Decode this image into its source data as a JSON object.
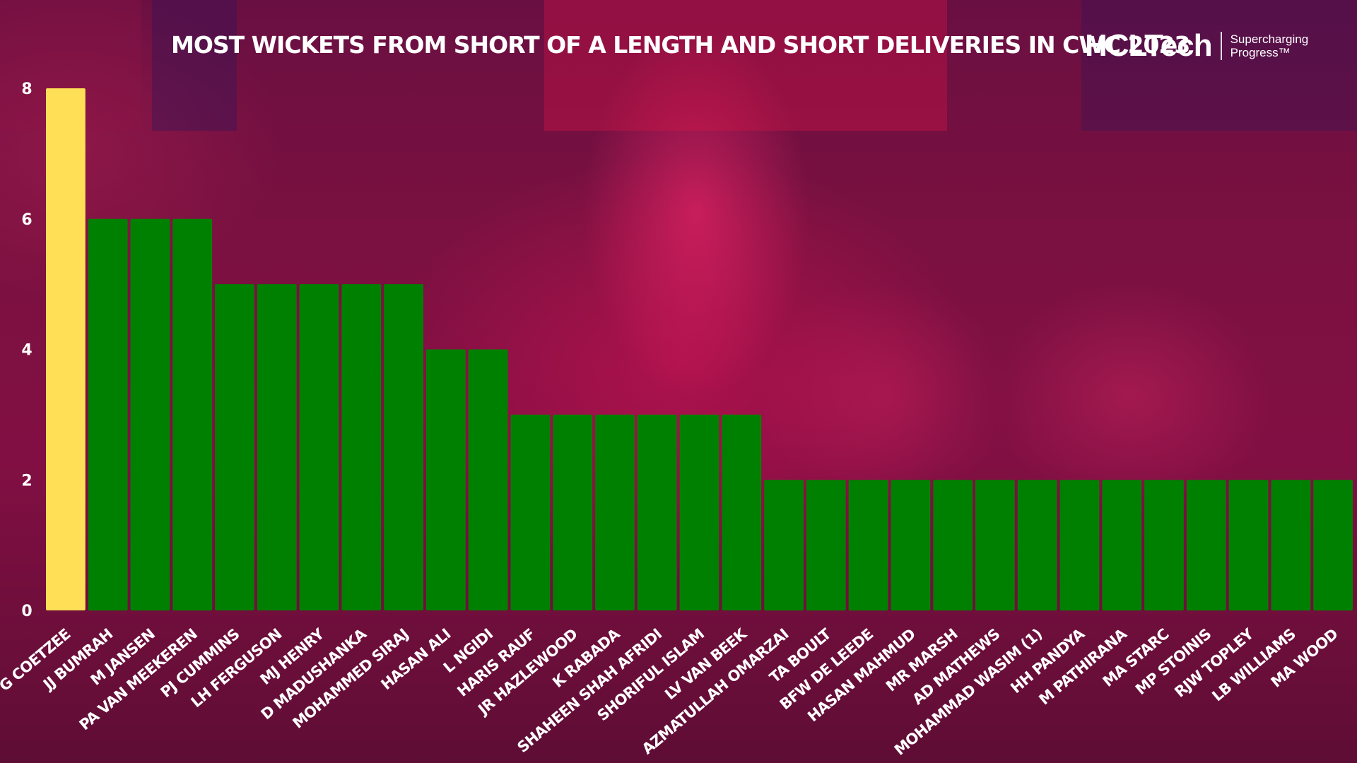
{
  "branding": {
    "name": "HCLTech",
    "tagline_line1": "Supercharging",
    "tagline_line2": "Progress™"
  },
  "colors": {
    "highlight_bar": "#FFDF56",
    "bar": "#008000",
    "text": "#FFFFFF"
  },
  "chart_data": {
    "type": "bar",
    "title": "MOST WICKETS FROM SHORT OF A LENGTH AND SHORT DELIVERIES IN CWC 2023",
    "xlabel": "",
    "ylabel": "",
    "ylim": [
      0,
      8
    ],
    "yticks": [
      0,
      2,
      4,
      6,
      8
    ],
    "grid": false,
    "highlight_index": 0,
    "categories": [
      "G COETZEE",
      "JJ BUMRAH",
      "M JANSEN",
      "PA VAN MEEKEREN",
      "PJ CUMMINS",
      "LH FERGUSON",
      "MJ HENRY",
      "D MADUSHANKA",
      "MOHAMMED SIRAJ",
      "HASAN ALI",
      "L NGIDI",
      "HARIS RAUF",
      "JR HAZLEWOOD",
      "K RABADA",
      "SHAHEEN SHAH AFRIDI",
      "SHORIFUL ISLAM",
      "LV VAN BEEK",
      "AZMATULLAH OMARZAI",
      "TA BOULT",
      "BFW DE LEEDE",
      "HASAN MAHMUD",
      "MR MARSH",
      "AD MATHEWS",
      "MOHAMMAD WASIM (1)",
      "HH PANDYA",
      "M PATHIRANA",
      "MA STARC",
      "MP STOINIS",
      "RJW TOPLEY",
      "LB WILLIAMS",
      "MA WOOD"
    ],
    "values": [
      8,
      6,
      6,
      6,
      5,
      5,
      5,
      5,
      5,
      4,
      4,
      3,
      3,
      3,
      3,
      3,
      3,
      2,
      2,
      2,
      2,
      2,
      2,
      2,
      2,
      2,
      2,
      2,
      2,
      2,
      2
    ]
  }
}
